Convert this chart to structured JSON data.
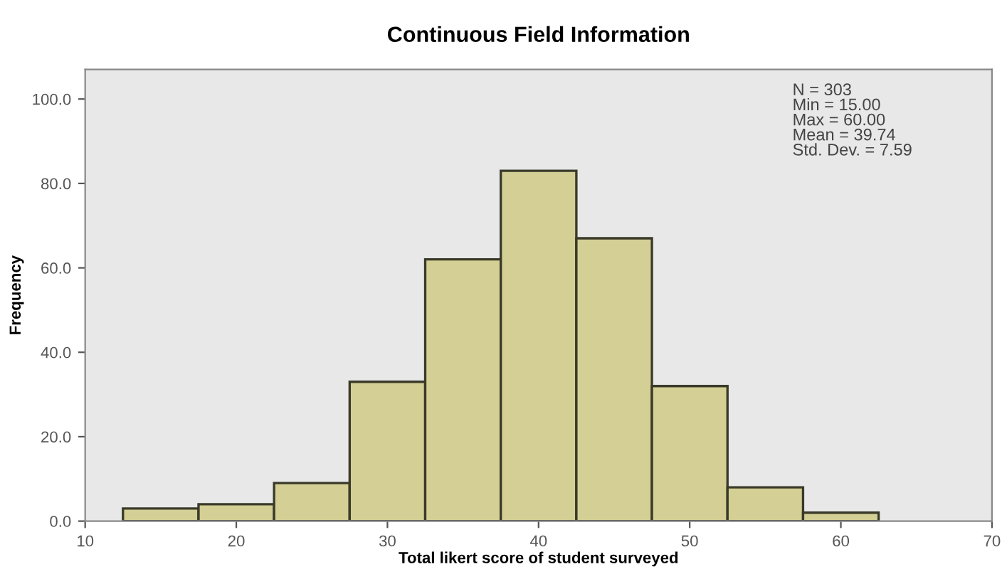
{
  "chart_data": {
    "type": "histogram",
    "title": "Continuous Field Information",
    "xlabel": "Total likert score of student surveyed",
    "ylabel": "Frequency",
    "bins": [
      12.5,
      17.5,
      22.5,
      27.5,
      32.5,
      37.5,
      42.5,
      47.5,
      52.5,
      57.5,
      62.5
    ],
    "values": [
      3,
      4,
      9,
      33,
      62,
      83,
      67,
      32,
      8,
      2
    ],
    "color": "#d4cf94",
    "xlim": [
      10,
      70
    ],
    "xticks": [
      10,
      20,
      30,
      40,
      50,
      60,
      70
    ],
    "ylim": [
      0,
      107
    ],
    "yticks": [
      {
        "value": 0,
        "label": "0.0"
      },
      {
        "value": 20,
        "label": "20.0"
      },
      {
        "value": 40,
        "label": "40.0"
      },
      {
        "value": 60,
        "label": "60.0"
      },
      {
        "value": 80,
        "label": "80.0"
      },
      {
        "value": 100,
        "label": "100.0"
      }
    ],
    "grid": false,
    "annotations": [
      "N = 303\nMin = 15.00\nMax = 60.00\nMean = 39.74\nStd. Dev. = 7.59"
    ]
  }
}
